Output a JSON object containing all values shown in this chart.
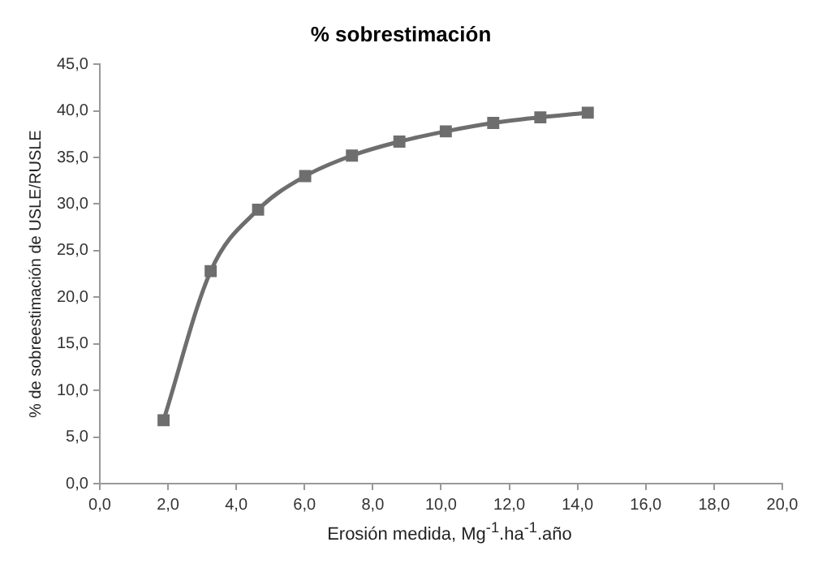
{
  "chart_data": {
    "type": "line",
    "title": "% sobrestimación",
    "xlabel": "Erosión medida, Mg$^{-1}$.ha$^{-1}$.año",
    "ylabel": "% de sobreestimación de USLE/RUSLE",
    "x": [
      1.87,
      3.25,
      4.64,
      6.02,
      7.39,
      8.78,
      10.14,
      11.53,
      12.91,
      14.3
    ],
    "series": [
      {
        "color": "#6e6e6e",
        "values": [
          6.8,
          22.8,
          29.4,
          33.0,
          35.2,
          36.7,
          37.8,
          38.7,
          39.3,
          39.8
        ]
      }
    ],
    "xlim": [
      0,
      20
    ],
    "xticks": [
      {
        "value": 0,
        "label": "0,0"
      },
      {
        "value": 2,
        "label": "2,0"
      },
      {
        "value": 4,
        "label": "4,0"
      },
      {
        "value": 6,
        "label": "6,0"
      },
      {
        "value": 8,
        "label": "8,0"
      },
      {
        "value": 10,
        "label": "10,0"
      },
      {
        "value": 12,
        "label": "12,0"
      },
      {
        "value": 14,
        "label": "14,0"
      },
      {
        "value": 16,
        "label": "16,0"
      },
      {
        "value": 18,
        "label": "18,0"
      },
      {
        "value": 20,
        "label": "20,0"
      }
    ],
    "ylim": [
      0,
      45
    ],
    "yticks": [
      {
        "value": 0,
        "label": "0,0"
      },
      {
        "value": 5,
        "label": "5,0"
      },
      {
        "value": 10,
        "label": "10,0"
      },
      {
        "value": 15,
        "label": "15,0"
      },
      {
        "value": 20,
        "label": "20,0"
      },
      {
        "value": 25,
        "label": "25,0"
      },
      {
        "value": 30,
        "label": "30,0"
      },
      {
        "value": 35,
        "label": "35,0"
      },
      {
        "value": 40,
        "label": "40,0"
      },
      {
        "value": 45,
        "label": "45,0"
      }
    ],
    "grid": false,
    "legend": false,
    "marker": "square",
    "line_style": "solid"
  }
}
